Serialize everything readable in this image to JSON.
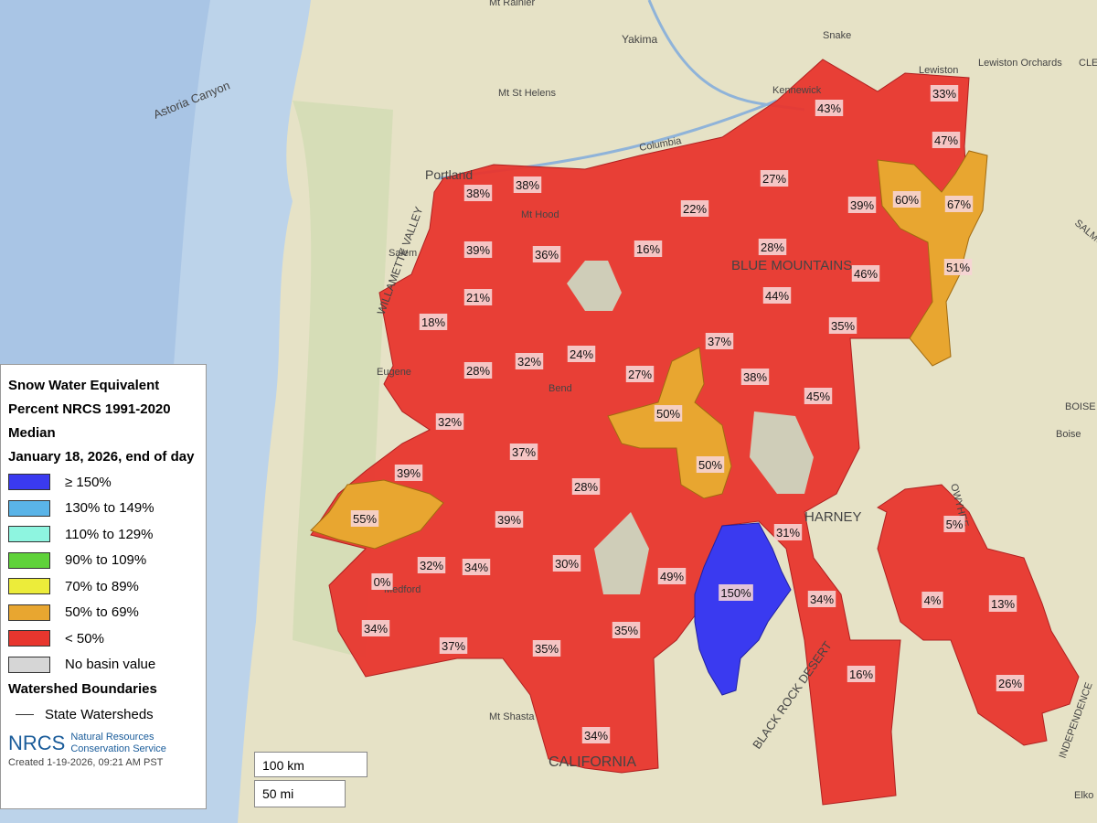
{
  "legend": {
    "title": "Snow Water Equivalent Percent NRCS 1991-2020 Median",
    "date": "January 18, 2026, end of day",
    "items": [
      {
        "label": "≥ 150%",
        "color": "#3a3af0"
      },
      {
        "label": "130% to 149%",
        "color": "#5ab4e8"
      },
      {
        "label": "110% to 129%",
        "color": "#8ef5e0"
      },
      {
        "label": "90% to 109%",
        "color": "#5fd23a"
      },
      {
        "label": "70% to 89%",
        "color": "#ecec3a"
      },
      {
        "label": "50% to 69%",
        "color": "#e8a630"
      },
      {
        "label": "< 50%",
        "color": "#e8362e"
      },
      {
        "label": "No basin value",
        "color": "#d6d6d6"
      }
    ],
    "boundaries_title": "Watershed Boundaries",
    "boundary_item": "State Watersheds",
    "logo": "NRCS",
    "agency_line1": "Natural Resources",
    "agency_line2": "Conservation Service",
    "created": "Created 1-19-2026, 09:21 AM PST"
  },
  "scale": {
    "km": "100 km",
    "mi": "50 mi"
  },
  "places": [
    "Mt Rainier",
    "Yakima",
    "Snake",
    "Lewiston",
    "Lewiston Orchards",
    "Astoria Canyon",
    "Mt St Helens",
    "Kennewick",
    "Columbia",
    "Portland",
    "Mt Hood",
    "Salem",
    "Eugene",
    "Bend",
    "Boise",
    "Mt Shasta",
    "Elko",
    "Medford",
    "CALIFORNIA",
    "BLACK ROCK DESERT",
    "BLUE MOUNTAINS",
    "HARNEY",
    "WILLAMETTE VALLEY",
    "CLEAR",
    "SALMON",
    "BOISE MO",
    "OWYHEE",
    "INDEPENDENCE"
  ],
  "basins": [
    "38%",
    "38%",
    "22%",
    "27%",
    "43%",
    "33%",
    "47%",
    "60%",
    "67%",
    "39%",
    "39%",
    "36%",
    "16%",
    "28%",
    "51%",
    "46%",
    "21%",
    "44%",
    "18%",
    "35%",
    "37%",
    "24%",
    "32%",
    "28%",
    "27%",
    "38%",
    "45%",
    "50%",
    "32%",
    "37%",
    "50%",
    "39%",
    "28%",
    "55%",
    "39%",
    "31%",
    "5%",
    "32%",
    "34%",
    "30%",
    "49%",
    "0%",
    "150%",
    "34%",
    "4%",
    "13%",
    "34%",
    "37%",
    "35%",
    "35%",
    "16%",
    "26%",
    "34%"
  ]
}
